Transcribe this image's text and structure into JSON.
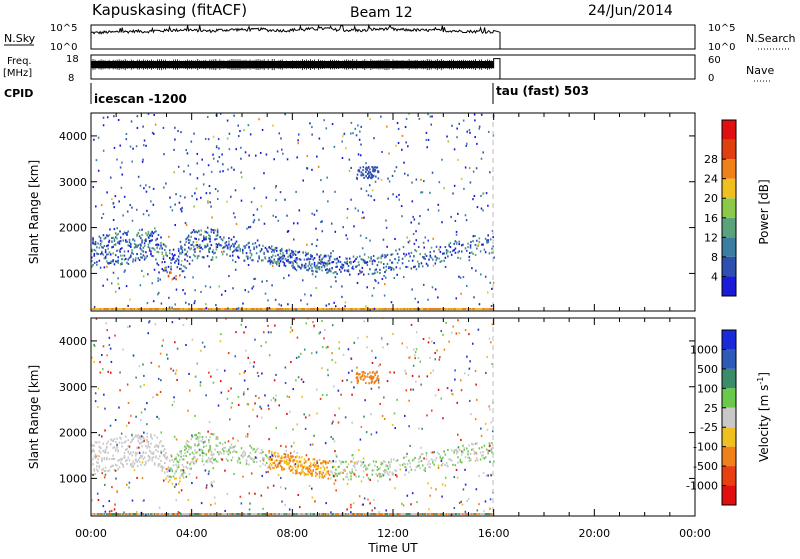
{
  "header": {
    "station": "Kapuskasing (fitACF)",
    "beam": "Beam 12",
    "date": "24/Jun/2014"
  },
  "chart_data": [
    {
      "type": "line",
      "name": "nsky-nsearch",
      "left_label": "N.Sky",
      "right_label": "N.Search",
      "yticks_left": [
        "10^5",
        "10^0"
      ],
      "yticks_right": [
        "10^5",
        "10^0"
      ],
      "x_hours": [
        0,
        0.5,
        1,
        1.5,
        2,
        2.5,
        3,
        3.5,
        4,
        4.5,
        5,
        5.5,
        6,
        6.5,
        7,
        7.5,
        8,
        8.5,
        9,
        9.5,
        10,
        10.5,
        11,
        11.5,
        12,
        12.5,
        13,
        13.5,
        14,
        14.5,
        15,
        15.5,
        16
      ],
      "level": [
        0.68,
        0.7,
        0.72,
        0.74,
        0.73,
        0.76,
        0.78,
        0.8,
        0.77,
        0.75,
        0.79,
        0.81,
        0.8,
        0.82,
        0.78,
        0.77,
        0.8,
        0.83,
        0.85,
        0.8,
        0.78,
        0.77,
        0.82,
        0.84,
        0.8,
        0.79,
        0.78,
        0.77,
        0.76,
        0.74,
        0.73,
        0.72,
        0.7
      ]
    },
    {
      "type": "line",
      "name": "freq-nave",
      "left_label": "Freq.",
      "left_unit": "[MHz]",
      "right_label": "Nave",
      "yticks_left": [
        "18",
        "8"
      ],
      "yticks_right": [
        "60",
        "0"
      ],
      "freq_MHz_range": [
        8,
        18
      ],
      "nave_range": [
        0,
        60
      ],
      "x_hours": [
        0,
        16,
        16.25
      ],
      "freq_band": [
        12.5,
        15.5
      ],
      "final_step_level": 0.85
    },
    {
      "type": "table",
      "name": "cpid",
      "label": "CPID",
      "segments": [
        {
          "start_hour": 0,
          "text": "icescan -1200"
        },
        {
          "start_hour": 16,
          "text": "tau (fast) 503"
        }
      ]
    },
    {
      "type": "heatmap",
      "name": "power",
      "ylabel": "Slant Range [km]",
      "yticks": [
        1000,
        2000,
        3000,
        4000
      ],
      "ylim": [
        180,
        4500
      ],
      "xlim_hours": [
        0,
        24
      ],
      "colorbar_label": "Power [dB]",
      "colorbar_ticks": [
        4,
        8,
        12,
        16,
        20,
        24,
        28
      ],
      "colorbar_colors": [
        "#1a1ad8",
        "#2d4fb0",
        "#3c7da2",
        "#5aa37a",
        "#8cc84a",
        "#f0c020",
        "#f08018",
        "#e04010",
        "#e01010"
      ],
      "data_end_hour": 16
    },
    {
      "type": "heatmap",
      "name": "velocity",
      "ylabel": "Slant Range [km]",
      "yticks": [
        1000,
        2000,
        3000,
        4000
      ],
      "ylim": [
        180,
        4500
      ],
      "xlim_hours": [
        0,
        24
      ],
      "xticks": [
        "00:00",
        "04:00",
        "08:00",
        "12:00",
        "16:00",
        "20:00",
        "00:00"
      ],
      "xlabel": "Time UT",
      "colorbar_label": "Velocity [m s",
      "colorbar_label_sup": "-1",
      "colorbar_label_end": "]",
      "colorbar_ticks": [
        "1000",
        "500",
        "100",
        "25",
        "-25",
        "-100",
        "-500",
        "-1000"
      ],
      "colorbar_colors": [
        "#1a2ad8",
        "#2e5ab8",
        "#3c8c6a",
        "#6ac84a",
        "#c8c8c8",
        "#f0c020",
        "#f08018",
        "#e84010",
        "#e01010"
      ],
      "data_end_hour": 16
    }
  ]
}
